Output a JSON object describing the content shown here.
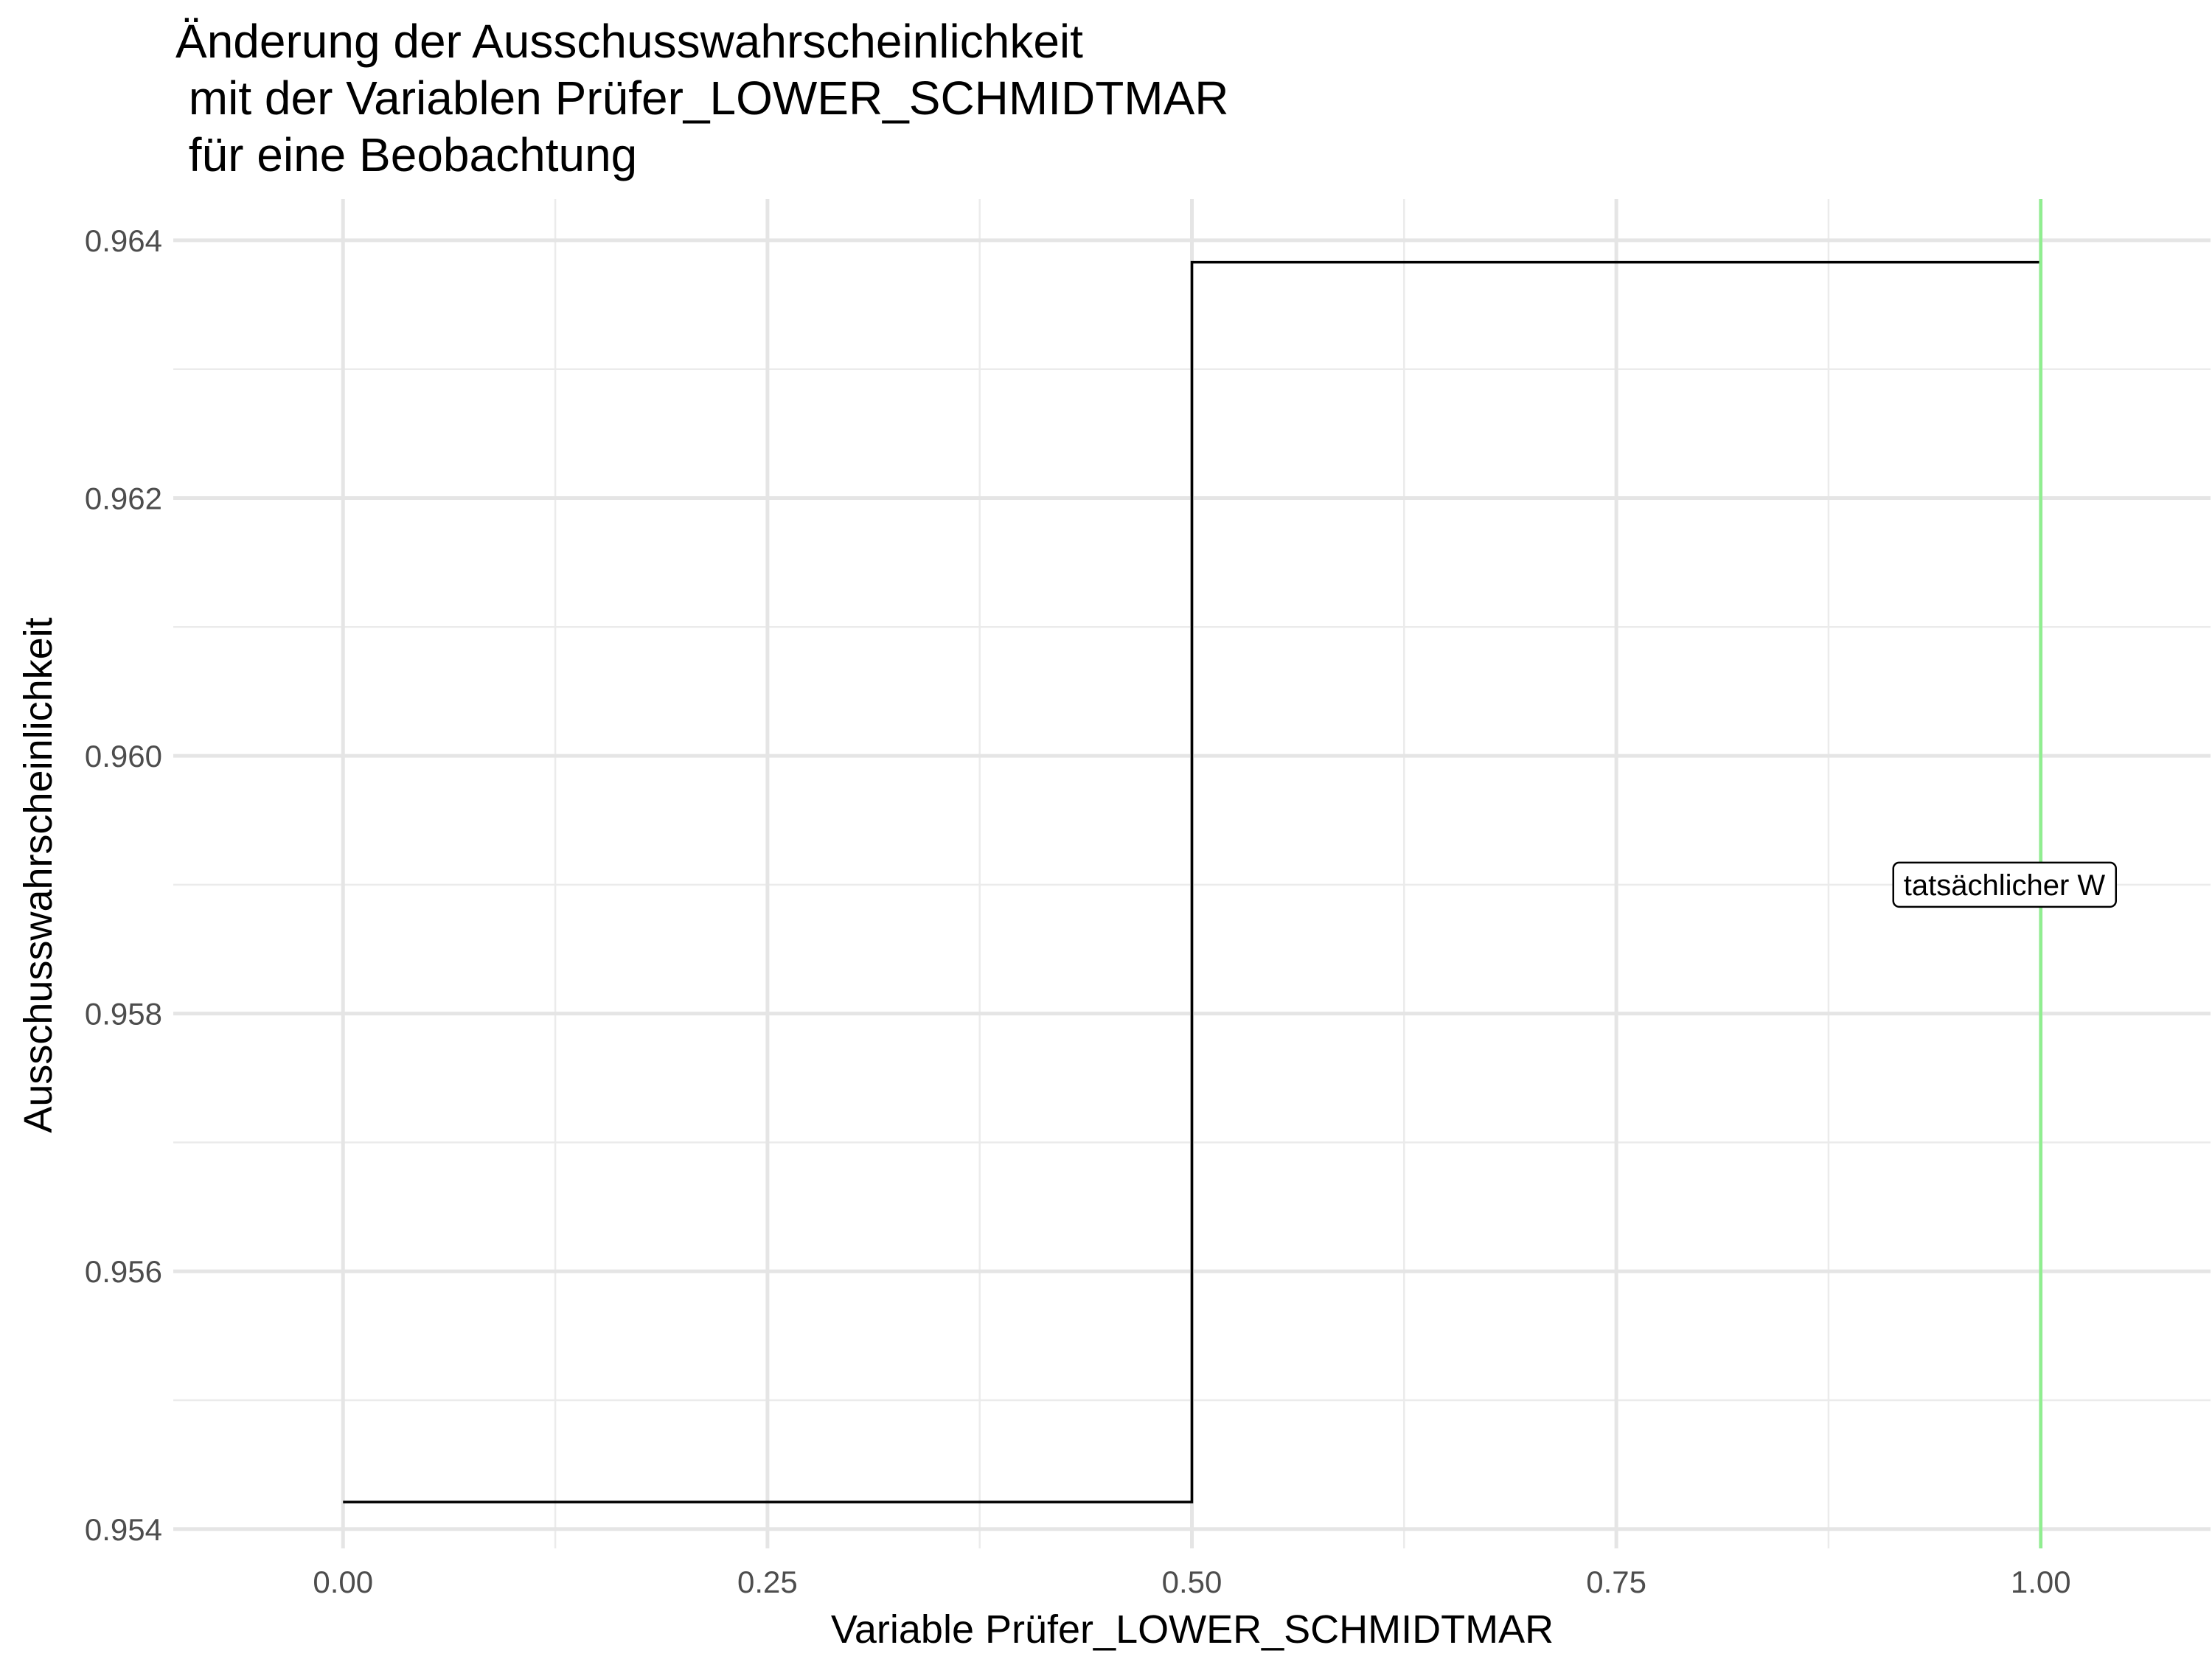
{
  "chart_data": {
    "type": "line",
    "step": true,
    "title_lines": [
      "Änderung der Ausschusswahrscheinlichkeit",
      " mit der Variablen Prüfer_LOWER_SCHMIDTMAR",
      " für eine Beobachtung"
    ],
    "xlabel": "Variable Prüfer_LOWER_SCHMIDTMAR",
    "ylabel": "Ausschusswahrscheinlichkeit",
    "xlim": [
      -0.1,
      1.1
    ],
    "ylim": [
      0.95385,
      0.96432
    ],
    "x_ticks": [
      0.0,
      0.25,
      0.5,
      0.75,
      1.0
    ],
    "x_tick_labels": [
      "0.00",
      "0.25",
      "0.50",
      "0.75",
      "1.00"
    ],
    "y_ticks": [
      0.954,
      0.956,
      0.958,
      0.96,
      0.962,
      0.964
    ],
    "y_tick_labels": [
      "0.954",
      "0.956",
      "0.958",
      "0.960",
      "0.962",
      "0.964"
    ],
    "grid": true,
    "series": [
      {
        "x": [
          0.0,
          0.5,
          0.5,
          1.0
        ],
        "y": [
          0.95421,
          0.95421,
          0.96383,
          0.96383
        ],
        "color": "#000000"
      }
    ],
    "reference_line": {
      "x": 1.0,
      "color": "#90ee90"
    },
    "annotation": {
      "text": "tatsächlicher W",
      "x": 1.0,
      "y": 0.959
    }
  }
}
